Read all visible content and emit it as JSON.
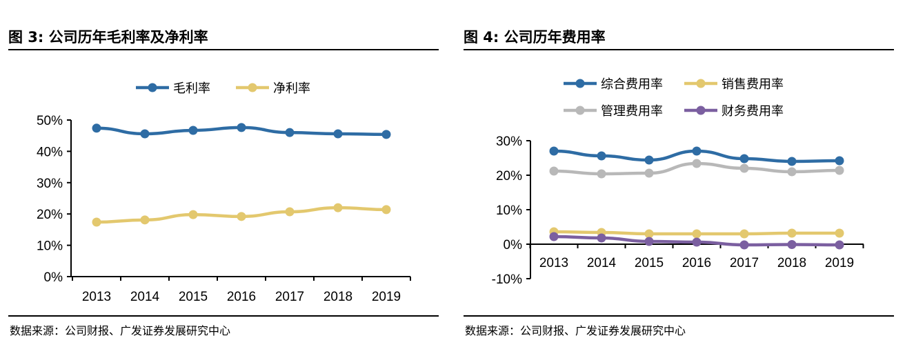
{
  "charts": [
    {
      "title": "图 3: 公司历年毛利率及净利率",
      "source": "数据来源：公司财报、广发证券发展研究中心"
    },
    {
      "title": "图 4: 公司历年费用率",
      "source": "数据来源：公司财报、广发证券发展研究中心"
    }
  ],
  "chart_data": [
    {
      "type": "line",
      "title": "图 3: 公司历年毛利率及净利率",
      "categories": [
        "2013",
        "2014",
        "2015",
        "2016",
        "2017",
        "2018",
        "2019"
      ],
      "ylim": [
        0,
        50
      ],
      "yticks": [
        "0%",
        "10%",
        "20%",
        "30%",
        "40%",
        "50%"
      ],
      "grid": false,
      "legend": "top",
      "series": [
        {
          "name": "毛利率",
          "color": "#2e6ca4",
          "values": [
            47.4,
            45.6,
            46.7,
            47.6,
            46.0,
            45.6,
            45.4
          ]
        },
        {
          "name": "净利率",
          "color": "#e3c86e",
          "values": [
            17.4,
            18.1,
            19.8,
            19.2,
            20.7,
            22.0,
            21.4
          ]
        }
      ]
    },
    {
      "type": "line",
      "title": "图 4: 公司历年费用率",
      "categories": [
        "2013",
        "2014",
        "2015",
        "2016",
        "2017",
        "2018",
        "2019"
      ],
      "ylim": [
        -10,
        30
      ],
      "yticks": [
        "-10%",
        "0%",
        "10%",
        "20%",
        "30%"
      ],
      "grid": false,
      "legend": "top",
      "series": [
        {
          "name": "综合费用率",
          "color": "#2e6ca4",
          "values": [
            27.0,
            25.6,
            24.4,
            27.0,
            24.8,
            24.0,
            24.2
          ]
        },
        {
          "name": "销售费用率",
          "color": "#e3c86e",
          "values": [
            3.6,
            3.4,
            3.0,
            3.0,
            3.0,
            3.2,
            3.2
          ]
        },
        {
          "name": "管理费用率",
          "color": "#b8b8b8",
          "values": [
            21.2,
            20.4,
            20.6,
            23.4,
            22.0,
            21.0,
            21.4
          ]
        },
        {
          "name": "财务费用率",
          "color": "#7b5fa0",
          "values": [
            2.2,
            1.8,
            0.8,
            0.6,
            -0.2,
            -0.1,
            -0.2
          ]
        }
      ]
    }
  ]
}
